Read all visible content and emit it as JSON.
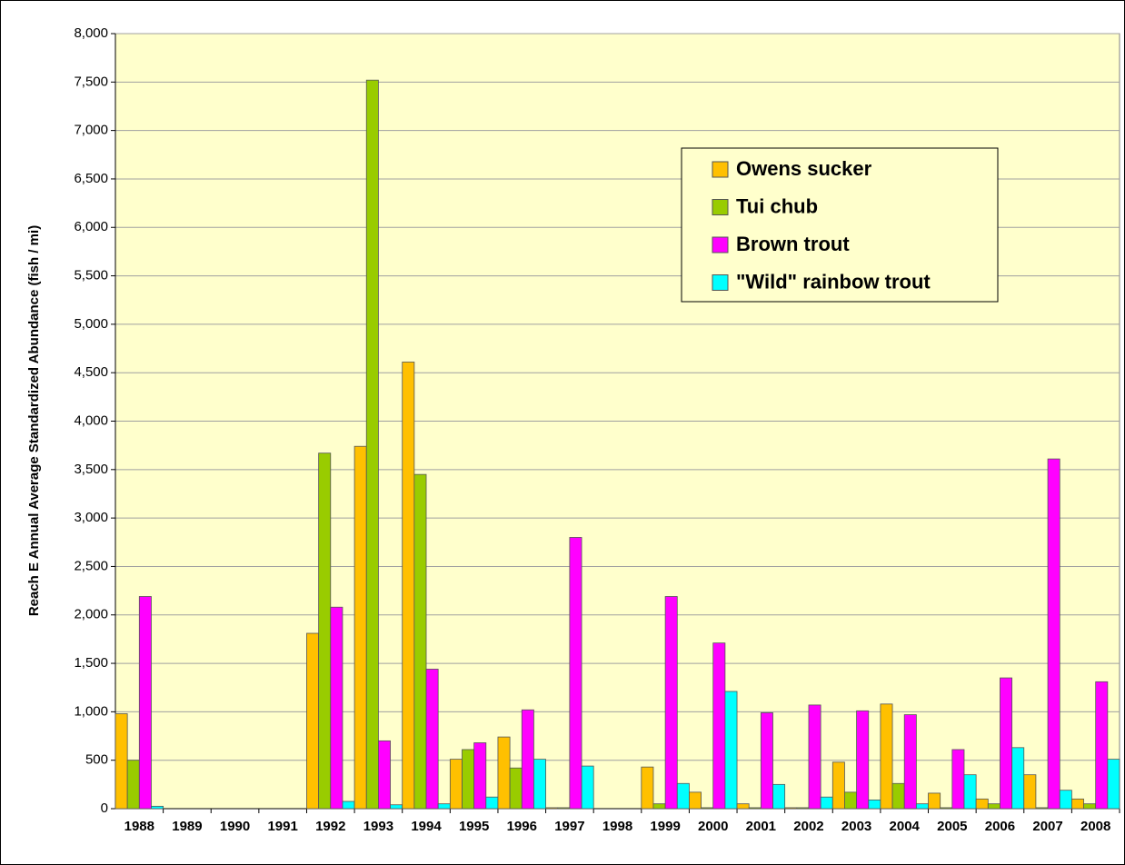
{
  "chart_data": {
    "type": "bar",
    "y_label": "Reach E Annual Average Standardized Abundance (fish / mi)",
    "categories": [
      "1988",
      "1989",
      "1990",
      "1991",
      "1992",
      "1993",
      "1994",
      "1995",
      "1996",
      "1997",
      "1998",
      "1999",
      "2000",
      "2001",
      "2002",
      "2003",
      "2004",
      "2005",
      "2006",
      "2007",
      "2008"
    ],
    "series": [
      {
        "name": "Owens sucker",
        "color": "#ffc000",
        "values": [
          980,
          null,
          null,
          null,
          1810,
          3740,
          4610,
          510,
          740,
          10,
          null,
          430,
          170,
          50,
          10,
          480,
          1080,
          160,
          100,
          350,
          100
        ]
      },
      {
        "name": "Tui chub",
        "color": "#99cc00",
        "values": [
          500,
          null,
          null,
          null,
          3670,
          7520,
          3450,
          610,
          420,
          10,
          null,
          50,
          10,
          10,
          10,
          170,
          260,
          10,
          50,
          10,
          50
        ]
      },
      {
        "name": "Brown trout",
        "color": "#ff00ff",
        "values": [
          2190,
          null,
          null,
          null,
          2080,
          700,
          1440,
          680,
          1020,
          2800,
          null,
          2190,
          1710,
          990,
          1070,
          1010,
          970,
          610,
          1350,
          3610,
          1310
        ]
      },
      {
        "name": "\"Wild\" rainbow trout",
        "color": "#00ffff",
        "values": [
          25,
          null,
          null,
          null,
          75,
          40,
          50,
          120,
          510,
          440,
          null,
          260,
          1210,
          250,
          120,
          90,
          50,
          350,
          630,
          190,
          510
        ]
      }
    ],
    "ylim": [
      0,
      8000
    ],
    "yticks": [
      0,
      500,
      {
        "value": 1000,
        "label": "1,000"
      },
      {
        "value": 1500,
        "label": "1,500"
      },
      {
        "value": 2000,
        "label": "2,000"
      },
      {
        "value": 2500,
        "label": "2,500"
      },
      {
        "value": 3000,
        "label": "3,000"
      },
      {
        "value": 3500,
        "label": "3,500"
      },
      {
        "value": 4000,
        "label": "4,000"
      },
      {
        "value": 4500,
        "label": "4,500"
      },
      {
        "value": 5000,
        "label": "5,000"
      },
      {
        "value": 5500,
        "label": "5,500"
      },
      {
        "value": 6000,
        "label": "6,000"
      },
      {
        "value": 6500,
        "label": "6,500"
      },
      {
        "value": 7000,
        "label": "7,000"
      },
      {
        "value": 7500,
        "label": "7,500"
      },
      {
        "value": 8000,
        "label": "8,000"
      }
    ],
    "grid": true
  }
}
